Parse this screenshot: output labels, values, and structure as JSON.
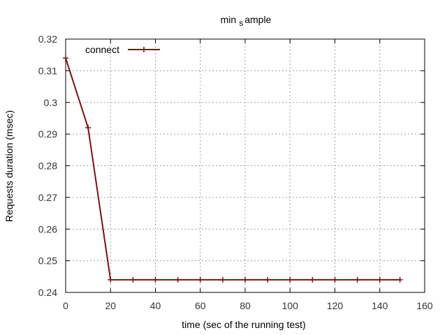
{
  "chart_data": {
    "type": "line",
    "title_parts": [
      "min",
      "s",
      "ample"
    ],
    "xlabel": "time (sec of the running test)",
    "ylabel": "Requests duration (msec)",
    "xlim": [
      0,
      160
    ],
    "ylim": [
      0.24,
      0.32
    ],
    "xticks": [
      0,
      20,
      40,
      60,
      80,
      100,
      120,
      140,
      160
    ],
    "yticks": [
      0.24,
      0.25,
      0.26,
      0.27,
      0.28,
      0.29,
      0.3,
      0.31,
      0.32
    ],
    "grid": true,
    "legend_position": "top-left",
    "series": [
      {
        "name": "connect",
        "color": "#7f1010",
        "marker": "plus",
        "x": [
          0,
          10,
          20,
          30,
          40,
          50,
          60,
          70,
          80,
          90,
          100,
          110,
          120,
          130,
          140,
          149
        ],
        "y": [
          0.314,
          0.292,
          0.244,
          0.244,
          0.244,
          0.244,
          0.244,
          0.244,
          0.244,
          0.244,
          0.244,
          0.244,
          0.244,
          0.244,
          0.244,
          0.244
        ]
      }
    ]
  }
}
